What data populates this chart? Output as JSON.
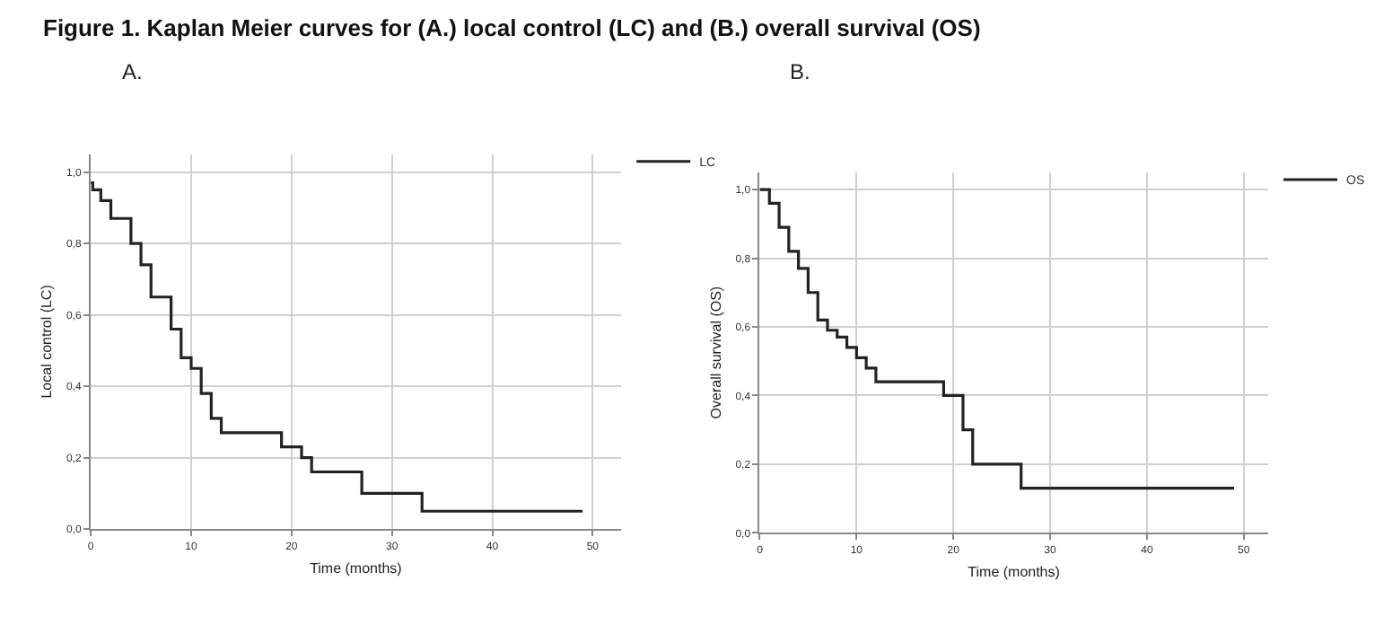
{
  "chart_data": [
    {
      "type": "step",
      "title": "A.",
      "annotations": [
        "Figure 1. Kaplan Meier curves for (A.) local control (LC) and (B.) overall survival (OS)"
      ],
      "xlabel": "Time (months)",
      "ylabel": "Local control (LC)",
      "series": [
        {
          "name": "LC",
          "color": "#222222",
          "x": [
            0,
            0.2,
            1,
            2,
            4,
            5,
            6,
            8,
            9,
            10,
            11,
            12,
            13,
            19,
            21,
            22,
            27,
            33,
            49
          ],
          "values": [
            0.97,
            0.95,
            0.92,
            0.87,
            0.8,
            0.74,
            0.65,
            0.56,
            0.48,
            0.45,
            0.38,
            0.31,
            0.27,
            0.23,
            0.2,
            0.16,
            0.1,
            0.05,
            0.05
          ]
        }
      ],
      "xlim": [
        0,
        52.8
      ],
      "ylim": [
        0,
        1.05
      ],
      "xticks": [
        0,
        10,
        20,
        30,
        40,
        50
      ],
      "yticks": [
        {
          "value": 0,
          "label": "0,0"
        },
        {
          "value": 0.2,
          "label": "0,2"
        },
        {
          "value": 0.4,
          "label": "0,4"
        },
        {
          "value": 0.6,
          "label": "0,6"
        },
        {
          "value": 0.8,
          "label": "0,8"
        },
        {
          "value": 1.0,
          "label": "1,0"
        }
      ],
      "grid": true,
      "legend": "top right",
      "marker": "none",
      "line_style": "solid"
    },
    {
      "type": "step",
      "title": "B.",
      "xlabel": "Time (months)",
      "ylabel": "Overall survival (OS)",
      "series": [
        {
          "name": "OS",
          "color": "#222222",
          "x": [
            0,
            1,
            2,
            3,
            4,
            5,
            6,
            7,
            8,
            9,
            10,
            11,
            12,
            19,
            21,
            22,
            27,
            49
          ],
          "values": [
            1.0,
            0.96,
            0.89,
            0.82,
            0.77,
            0.7,
            0.62,
            0.59,
            0.57,
            0.54,
            0.51,
            0.48,
            0.44,
            0.4,
            0.3,
            0.2,
            0.13,
            0.13
          ]
        }
      ],
      "xlim": [
        0,
        52.5
      ],
      "ylim": [
        0,
        1.05
      ],
      "xticks": [
        0,
        10,
        20,
        30,
        40,
        50
      ],
      "yticks": [
        {
          "value": 0,
          "label": "0,0"
        },
        {
          "value": 0.2,
          "label": "0,2"
        },
        {
          "value": 0.4,
          "label": "0,4"
        },
        {
          "value": 0.6,
          "label": "0,6"
        },
        {
          "value": 0.8,
          "label": "0,8"
        },
        {
          "value": 1.0,
          "label": "1,0"
        }
      ],
      "grid": true,
      "legend": "top right",
      "marker": "none",
      "line_style": "solid"
    }
  ]
}
